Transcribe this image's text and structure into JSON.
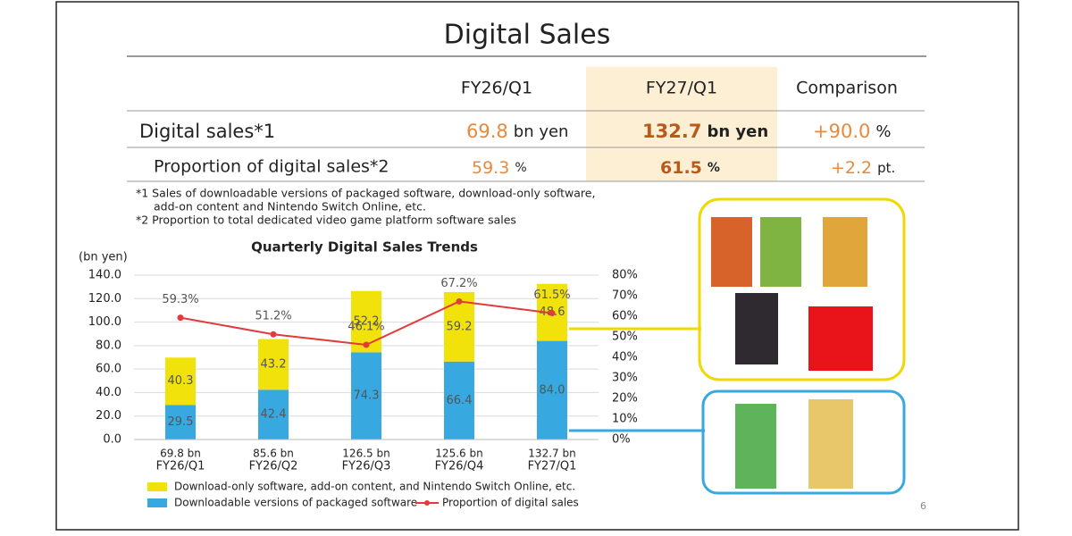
{
  "header": {
    "title": "Digital Sales"
  },
  "table": {
    "columns": [
      "FY26/Q1",
      "FY27/Q1",
      "Comparison"
    ],
    "rows": [
      {
        "label": "Digital sales*1",
        "cells": [
          {
            "value": "69.8",
            "unit": "bn yen"
          },
          {
            "value": "132.7",
            "unit": "bn yen"
          },
          {
            "value": "+90.0",
            "unit": "%"
          }
        ]
      },
      {
        "label": "Proportion of digital sales*2",
        "cells": [
          {
            "value": "59.3",
            "unit": "%"
          },
          {
            "value": "61.5",
            "unit": "%"
          },
          {
            "value": "+2.2",
            "unit": "pt."
          }
        ]
      }
    ]
  },
  "notes": [
    "*1 Sales of downloadable versions of packaged software, download-only software,",
    "add-on content and Nintendo Switch Online, etc.",
    "*2 Proportion to total dedicated video game platform software sales"
  ],
  "chart_data": {
    "type": "bar",
    "stacked": true,
    "title": "Quarterly Digital Sales Trends",
    "y_label": "(bn yen)",
    "categories": [
      "FY26/Q1",
      "FY26/Q2",
      "FY26/Q3",
      "FY26/Q4",
      "FY27/Q1"
    ],
    "totals": {
      "values": [
        69.8,
        85.6,
        126.5,
        125.6,
        132.7
      ],
      "value_labels": [
        "69.8 bn",
        "85.6 bn",
        "126.5 bn",
        "125.6 bn",
        "132.7 bn"
      ]
    },
    "series": [
      {
        "name": "Downloadable versions of packaged software",
        "color": "#37a8e0",
        "values": [
          29.5,
          42.4,
          74.3,
          66.4,
          84.0
        ],
        "value_labels": [
          "29.5",
          "42.4",
          "74.3",
          "66.4",
          "84.0"
        ]
      },
      {
        "name": "Download-only software, add-on content, and Nintendo Switch Online, etc.",
        "color": "#f2e20c",
        "values": [
          40.3,
          43.2,
          52.2,
          59.2,
          48.6
        ],
        "value_labels": [
          "40.3",
          "43.2",
          "52.2",
          "59.2",
          "48.6"
        ]
      },
      {
        "name": "Proportion of digital sales",
        "type": "line",
        "axis": "y2",
        "color": "#e23b3b",
        "values": [
          59.3,
          51.2,
          46.1,
          67.2,
          61.5
        ],
        "value_labels": [
          "59.3%",
          "51.2%",
          "46.1%",
          "67.2%",
          "61.5%"
        ]
      }
    ],
    "ylim": [
      0,
      140
    ],
    "yticks": [
      {
        "value": 0,
        "label": "0.0"
      },
      {
        "value": 20,
        "label": "20.0"
      },
      {
        "value": 40,
        "label": "40.0"
      },
      {
        "value": 60,
        "label": "60.0"
      },
      {
        "value": 80,
        "label": "80.0"
      },
      {
        "value": 100,
        "label": "100.0"
      },
      {
        "value": 120,
        "label": "120.0"
      },
      {
        "value": 140,
        "label": "140.0"
      }
    ],
    "y2lim": [
      0,
      80
    ],
    "y2ticks": [
      {
        "value": 0,
        "label": "0%"
      },
      {
        "value": 10,
        "label": "10%"
      },
      {
        "value": 20,
        "label": "20%"
      },
      {
        "value": 30,
        "label": "30%"
      },
      {
        "value": 40,
        "label": "40%"
      },
      {
        "value": 50,
        "label": "50%"
      },
      {
        "value": 60,
        "label": "60%"
      },
      {
        "value": 70,
        "label": "70%"
      },
      {
        "value": 80,
        "label": "80%"
      }
    ],
    "grid": true
  },
  "page_number": "6"
}
